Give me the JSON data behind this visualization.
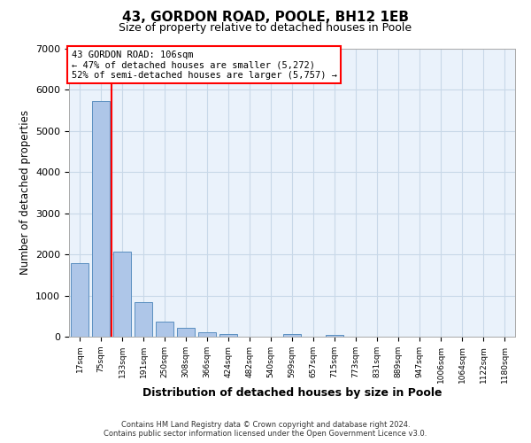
{
  "title": "43, GORDON ROAD, POOLE, BH12 1EB",
  "subtitle": "Size of property relative to detached houses in Poole",
  "xlabel": "Distribution of detached houses by size in Poole",
  "ylabel": "Number of detached properties",
  "bar_labels": [
    "17sqm",
    "75sqm",
    "133sqm",
    "191sqm",
    "250sqm",
    "308sqm",
    "366sqm",
    "424sqm",
    "482sqm",
    "540sqm",
    "599sqm",
    "657sqm",
    "715sqm",
    "773sqm",
    "831sqm",
    "889sqm",
    "947sqm",
    "1006sqm",
    "1064sqm",
    "1122sqm",
    "1180sqm"
  ],
  "bar_values": [
    1780,
    5730,
    2060,
    830,
    370,
    215,
    105,
    70,
    0,
    0,
    65,
    0,
    45,
    0,
    0,
    0,
    0,
    0,
    0,
    0,
    0
  ],
  "bar_color": "#aec6e8",
  "bar_edge_color": "#5a8fc0",
  "grid_color": "#c8d8e8",
  "background_color": "#eaf2fb",
  "red_line_x": 1.5,
  "annotation_line1": "43 GORDON ROAD: 106sqm",
  "annotation_line2": "← 47% of detached houses are smaller (5,272)",
  "annotation_line3": "52% of semi-detached houses are larger (5,757) →",
  "ylim": [
    0,
    7000
  ],
  "footer_line1": "Contains HM Land Registry data © Crown copyright and database right 2024.",
  "footer_line2": "Contains public sector information licensed under the Open Government Licence v3.0."
}
